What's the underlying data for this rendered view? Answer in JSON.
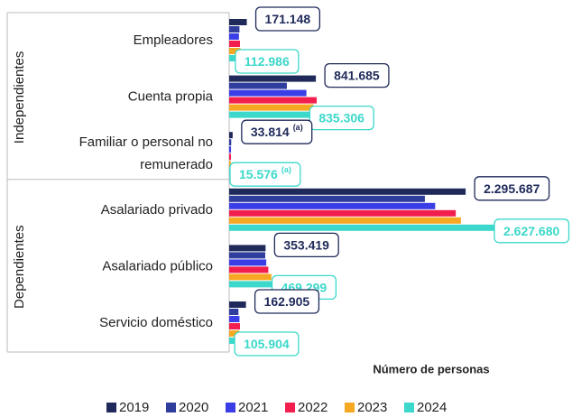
{
  "chart_data": {
    "type": "hbar",
    "categories": [
      "Empleadores",
      "Cuenta propia",
      [
        "Familiar o personal no",
        "remunerado"
      ],
      "Asalariado privado",
      "Asalariado público",
      "Servicio doméstico"
    ],
    "category_groups": [
      "Independientes",
      "Independientes",
      "Independientes",
      "Dependientes",
      "Dependientes",
      "Dependientes"
    ],
    "x_label": "Número de personas",
    "series": [
      {
        "name": "2019",
        "color": "#1f2a5a",
        "values": [
          171148,
          841685,
          33814,
          2295687,
          353419,
          162905
        ],
        "value_labels": [
          "171.148",
          "841.685",
          "33.814",
          "2.295.687",
          "353.419",
          "162.905"
        ],
        "label_notes": [
          null,
          null,
          "(a)",
          null,
          null,
          null
        ]
      },
      {
        "name": "2020",
        "color": "#2f3d9c",
        "values": [
          100000,
          560000,
          20000,
          1900000,
          350000,
          90000
        ]
      },
      {
        "name": "2021",
        "color": "#3a3ee6",
        "values": [
          95000,
          750000,
          18000,
          2000000,
          360000,
          100000
        ]
      },
      {
        "name": "2022",
        "color": "#f21e4e",
        "values": [
          105000,
          850000,
          17000,
          2200000,
          380000,
          105000
        ]
      },
      {
        "name": "2023",
        "color": "#f7a823",
        "values": [
          110000,
          820000,
          16000,
          2250000,
          410000,
          100000
        ]
      },
      {
        "name": "2024",
        "color": "#3cd8cb",
        "values": [
          112986,
          835306,
          15576,
          2627680,
          469299,
          105904
        ],
        "value_labels": [
          "112.986",
          "835.306",
          "15.576",
          "2.627.680",
          "469.299",
          "105.904"
        ],
        "label_notes": [
          null,
          null,
          "(a)",
          null,
          null,
          null
        ]
      }
    ],
    "legend": "bottom"
  }
}
